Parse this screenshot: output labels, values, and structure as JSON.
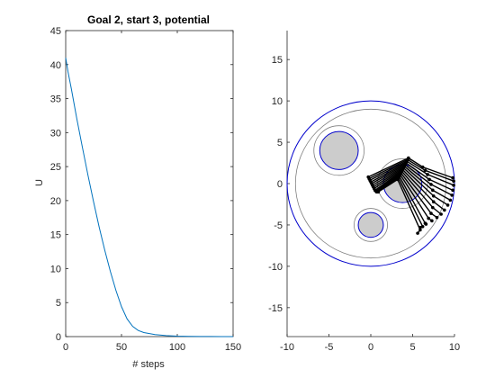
{
  "chart_data": [
    {
      "type": "line",
      "title": "Goal 2, start 3, potential",
      "xlabel": "# steps",
      "ylabel": "U",
      "xlim": [
        0,
        150
      ],
      "ylim": [
        0,
        45
      ],
      "xticks": [
        0,
        50,
        100,
        150
      ],
      "yticks": [
        0,
        5,
        10,
        15,
        20,
        25,
        30,
        35,
        40,
        45
      ],
      "series": [
        {
          "color": "#0072bd",
          "x": [
            0,
            2,
            5,
            10,
            15,
            20,
            25,
            30,
            35,
            40,
            45,
            50,
            55,
            60,
            65,
            70,
            80,
            90,
            100,
            110,
            120,
            130,
            140,
            150
          ],
          "y": [
            41.0,
            39.0,
            36.5,
            32.0,
            27.8,
            23.7,
            19.8,
            16.1,
            12.7,
            9.6,
            6.8,
            4.4,
            2.6,
            1.5,
            0.9,
            0.6,
            0.3,
            0.15,
            0.06,
            0.03,
            0.02,
            0.01,
            0.0,
            0.0
          ]
        }
      ]
    },
    {
      "type": "scatter",
      "title": "",
      "xlabel": "",
      "ylabel": "",
      "xlim": [
        -10,
        10
      ],
      "ylim": [
        -18.5,
        18.5
      ],
      "xticks": [
        -10,
        -5,
        0,
        5,
        10
      ],
      "yticks": [
        -15,
        -10,
        -5,
        0,
        5,
        10,
        15
      ],
      "world": {
        "center": [
          0,
          0
        ],
        "radius": 10,
        "color": "#0000cc"
      },
      "inner_ring": {
        "center": [
          0,
          0
        ],
        "radius": 9,
        "color": "#808080"
      },
      "obstacles": [
        {
          "center": [
            -3.8,
            4.0
          ],
          "radius": 2.3,
          "halo": 3.0
        },
        {
          "center": [
            3.8,
            0.0
          ],
          "radius": 2.3,
          "halo": 3.0
        },
        {
          "center": [
            0.0,
            -5.0
          ],
          "radius": 1.5,
          "halo": 2.0
        }
      ],
      "obstacle_fill": "#cccccc",
      "obstacle_edge": "#0000cc",
      "halo_color": "#808080",
      "trajectory_color": "#000000",
      "trajectory": [
        [
          [
            -0.3,
            0.8
          ],
          [
            4.5,
            3.1
          ],
          [
            6.2,
            2.0
          ],
          [
            9.8,
            0.7
          ]
        ],
        [
          [
            -0.2,
            0.6
          ],
          [
            4.4,
            2.9
          ],
          [
            6.5,
            1.6
          ],
          [
            9.9,
            0.3
          ]
        ],
        [
          [
            -0.1,
            0.4
          ],
          [
            4.3,
            2.7
          ],
          [
            6.8,
            1.1
          ],
          [
            9.9,
            -0.2
          ]
        ],
        [
          [
            0.0,
            0.2
          ],
          [
            4.2,
            2.5
          ],
          [
            7.0,
            0.5
          ],
          [
            9.8,
            -0.8
          ]
        ],
        [
          [
            0.1,
            0.0
          ],
          [
            4.1,
            2.3
          ],
          [
            7.2,
            -0.1
          ],
          [
            9.7,
            -1.4
          ]
        ],
        [
          [
            0.2,
            -0.2
          ],
          [
            4.0,
            2.1
          ],
          [
            7.4,
            -0.8
          ],
          [
            9.5,
            -2.0
          ]
        ],
        [
          [
            0.3,
            -0.4
          ],
          [
            3.9,
            1.9
          ],
          [
            7.5,
            -1.5
          ],
          [
            9.2,
            -2.6
          ]
        ],
        [
          [
            0.4,
            -0.6
          ],
          [
            3.8,
            1.7
          ],
          [
            7.5,
            -2.2
          ],
          [
            8.8,
            -3.2
          ]
        ],
        [
          [
            0.5,
            -0.8
          ],
          [
            3.7,
            1.5
          ],
          [
            7.4,
            -2.9
          ],
          [
            8.4,
            -3.7
          ]
        ],
        [
          [
            0.6,
            -0.9
          ],
          [
            3.6,
            1.3
          ],
          [
            7.2,
            -3.6
          ],
          [
            7.9,
            -4.1
          ]
        ],
        [
          [
            0.7,
            -1.0
          ],
          [
            3.5,
            1.1
          ],
          [
            6.9,
            -4.2
          ],
          [
            7.3,
            -4.5
          ]
        ],
        [
          [
            0.8,
            -1.0
          ],
          [
            3.4,
            0.9
          ],
          [
            6.5,
            -4.8
          ],
          [
            6.6,
            -4.9
          ]
        ],
        [
          [
            0.8,
            -1.0
          ],
          [
            3.3,
            0.7
          ],
          [
            6.2,
            -5.2
          ],
          [
            5.9,
            -5.3
          ]
        ],
        [
          [
            0.9,
            -1.0
          ],
          [
            3.2,
            0.5
          ],
          [
            5.9,
            -5.6
          ],
          [
            5.6,
            -6.0
          ]
        ]
      ]
    }
  ]
}
